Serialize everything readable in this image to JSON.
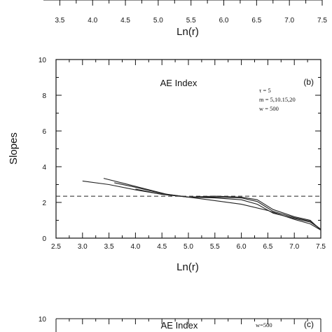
{
  "chart_data": [
    {
      "panel": "top (partial)",
      "type": "line",
      "xlabel": "Ln(r)",
      "x_ticks": [
        "3.5",
        "4.0",
        "4.5",
        "5.0",
        "5.5",
        "6.0",
        "6.5",
        "7.0",
        "7.5"
      ],
      "xlim": [
        3.25,
        7.5
      ]
    },
    {
      "panel": "(b)",
      "type": "line",
      "title": "AE Index",
      "panel_letter": "(b)",
      "params": [
        "τ = 5",
        "m = 5,10.15,20",
        "w = 500"
      ],
      "xlabel": "Ln(r)",
      "ylabel": "Slopes",
      "xlim": [
        2.5,
        7.5
      ],
      "ylim": [
        0,
        10
      ],
      "x_ticks": [
        "2.5",
        "3.0",
        "3.5",
        "4.0",
        "4.5",
        "5.0",
        "5.5",
        "6.0",
        "6.5",
        "7.0",
        "7.5"
      ],
      "y_ticks": [
        "0",
        "2",
        "4",
        "6",
        "8",
        "10"
      ],
      "reference_line": 2.35,
      "series": [
        {
          "x": [
            3.0,
            3.5,
            4.0,
            4.5,
            5.0,
            5.5,
            6.0,
            6.5,
            7.0,
            7.3,
            7.5
          ],
          "y": [
            3.2,
            3.0,
            2.7,
            2.45,
            2.3,
            2.1,
            1.9,
            1.55,
            1.05,
            0.8,
            0.45
          ]
        },
        {
          "x": [
            3.4,
            3.8,
            4.2,
            4.6,
            5.0,
            5.5,
            6.0,
            6.3,
            6.6,
            7.0,
            7.3,
            7.5
          ],
          "y": [
            3.35,
            3.05,
            2.75,
            2.45,
            2.3,
            2.25,
            2.15,
            1.9,
            1.4,
            1.1,
            0.9,
            0.5
          ]
        },
        {
          "x": [
            3.6,
            4.0,
            4.5,
            5.0,
            5.5,
            6.0,
            6.3,
            6.6,
            7.0,
            7.3,
            7.5
          ],
          "y": [
            3.1,
            2.85,
            2.5,
            2.3,
            2.3,
            2.25,
            2.05,
            1.5,
            1.15,
            0.95,
            0.5
          ]
        },
        {
          "x": [
            4.0,
            4.5,
            5.0,
            5.5,
            6.0,
            6.3,
            6.6,
            7.0,
            7.3,
            7.5
          ],
          "y": [
            2.75,
            2.45,
            2.3,
            2.35,
            2.3,
            2.15,
            1.6,
            1.2,
            1.0,
            0.45
          ]
        }
      ]
    },
    {
      "panel": "(c) (partial)",
      "type": "line",
      "title": "AE  Index",
      "panel_letter": "(c)",
      "params": [
        "w=500"
      ],
      "y_ticks": [
        "10"
      ],
      "ylim": [
        0,
        10
      ]
    }
  ]
}
